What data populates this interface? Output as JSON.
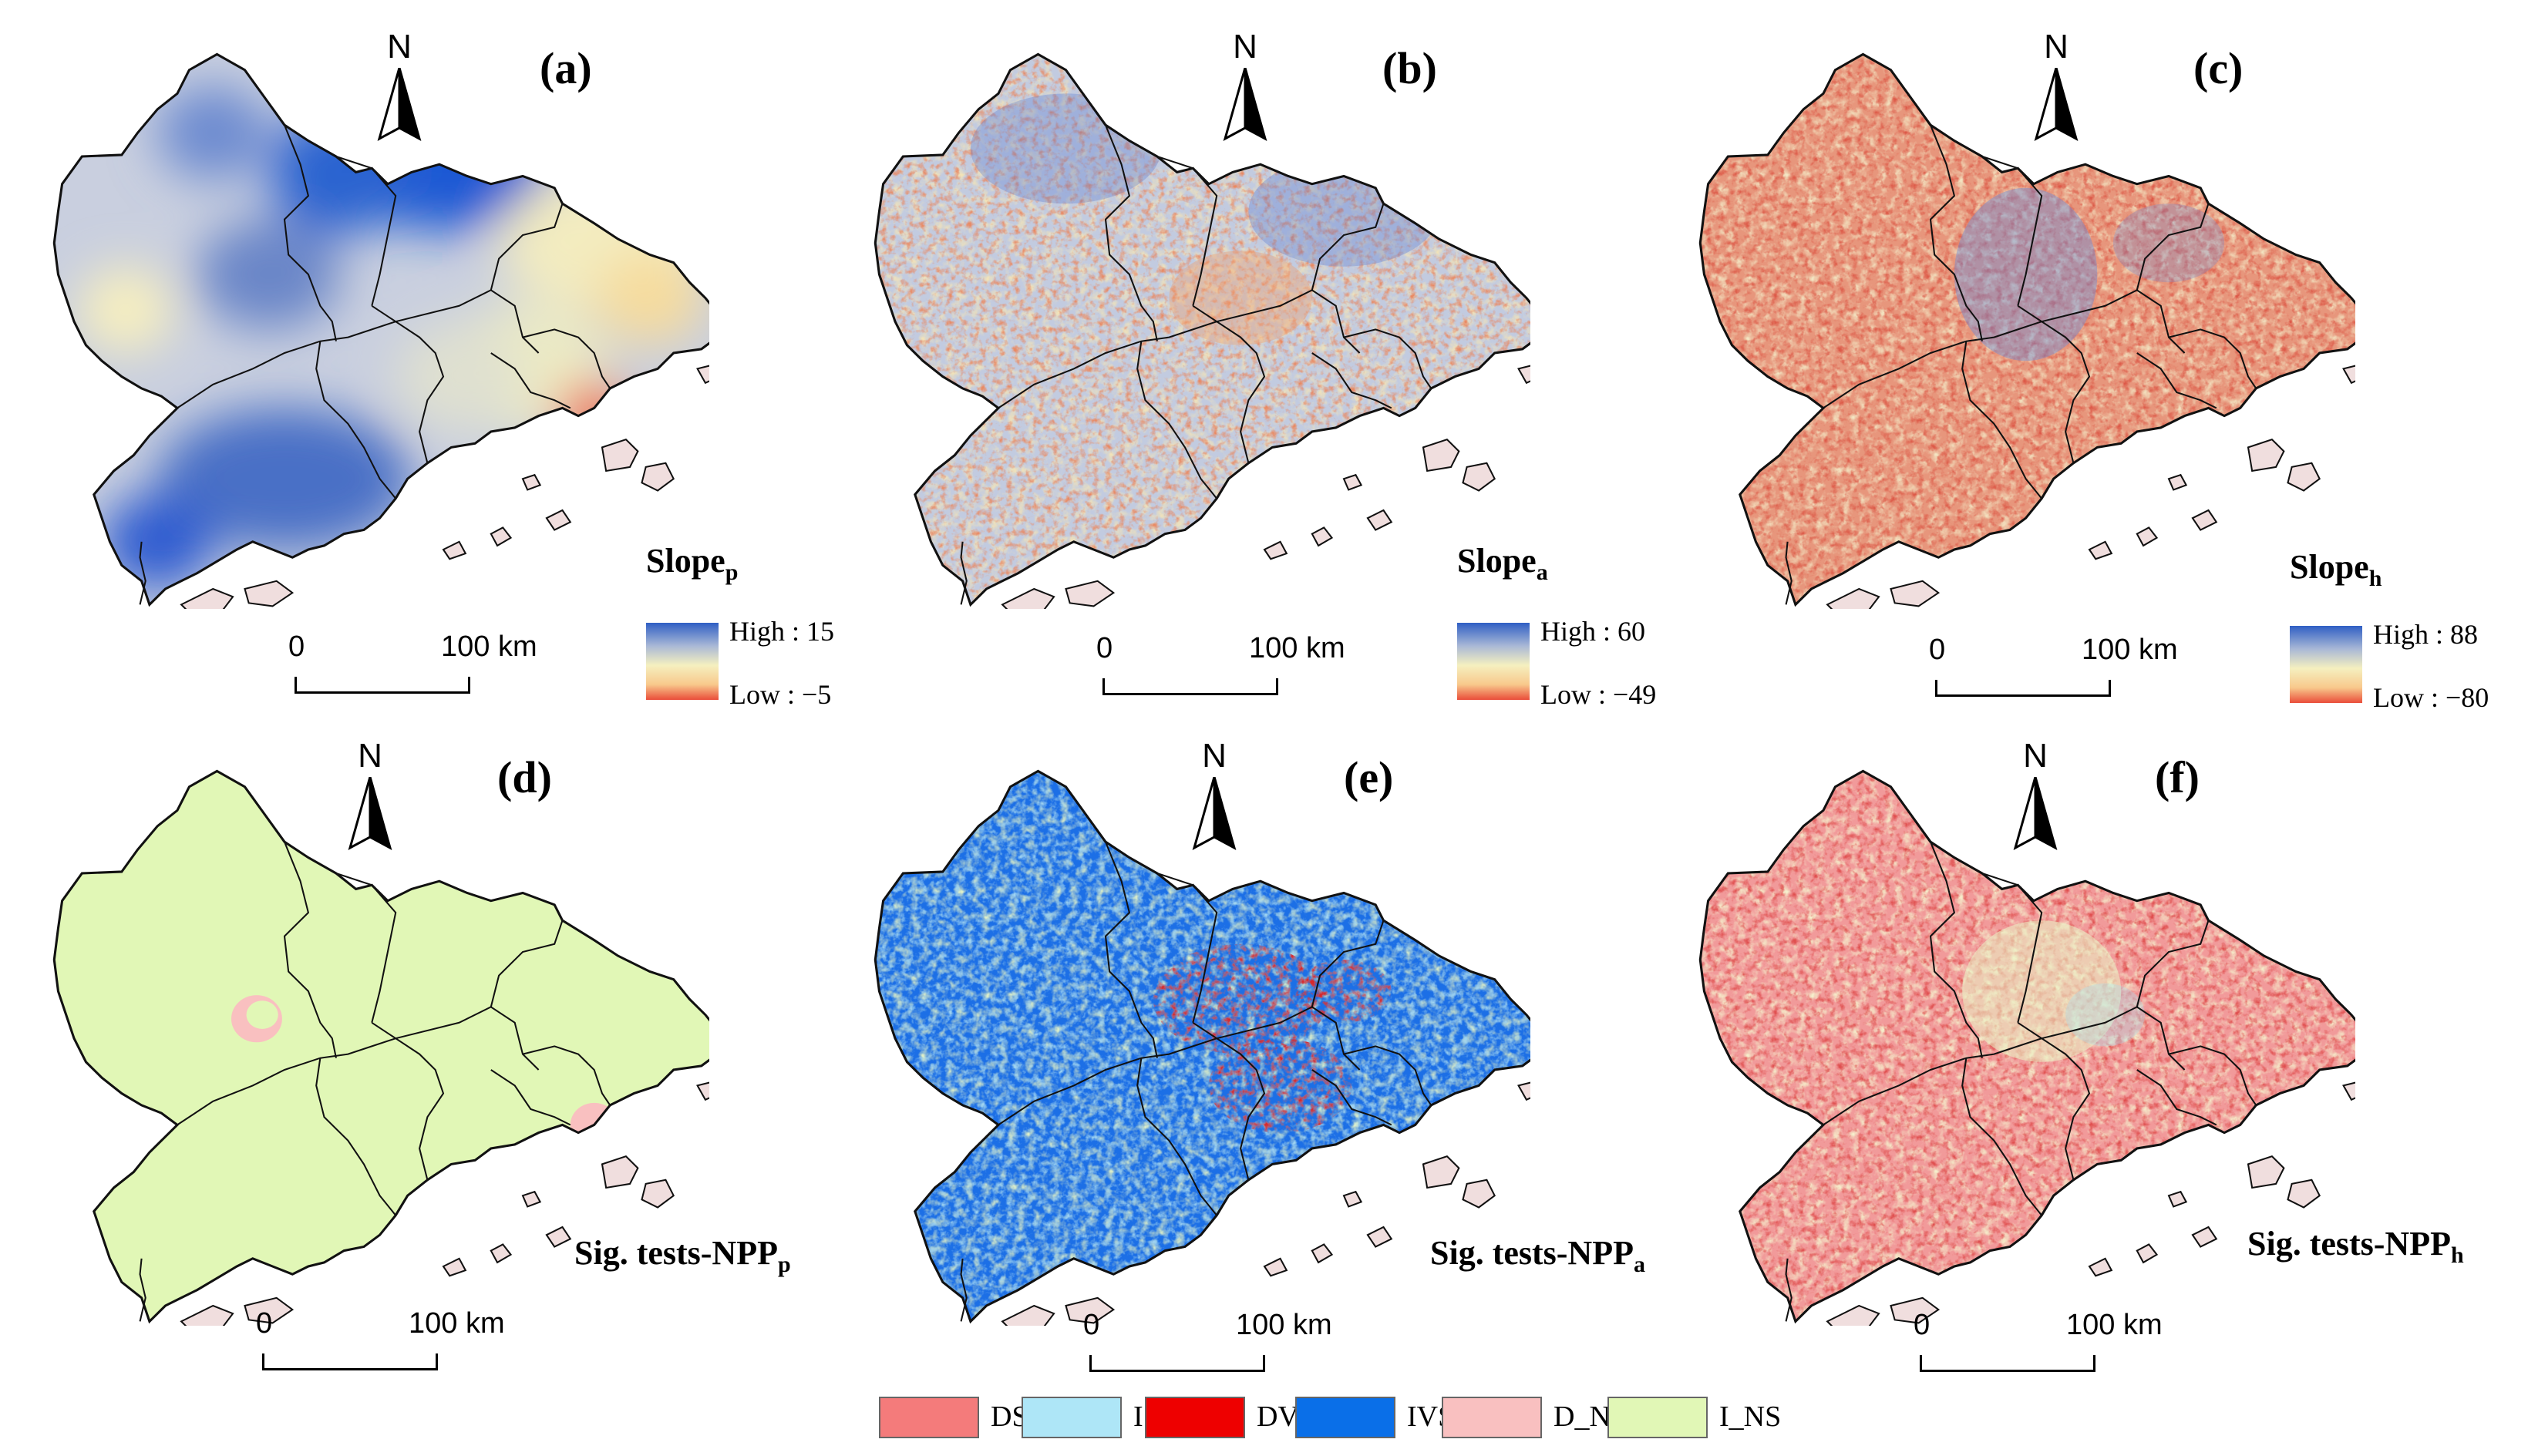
{
  "north_letter": "N",
  "scale": {
    "zero": "0",
    "distance": "100 km"
  },
  "panels": [
    {
      "label": "(a)",
      "title_main": "Slope",
      "title_sub": "p",
      "high": "High : 15",
      "low": "Low : −5",
      "style": "smooth",
      "ramp": [
        "#2f5fc4",
        "#a9b8d6",
        "#f5f0c0",
        "#f8c98c",
        "#ea4d3a"
      ]
    },
    {
      "label": "(b)",
      "title_main": "Slope",
      "title_sub": "a",
      "high": "High : 60",
      "low": "Low : −49",
      "style": "noise_mixed",
      "ramp": [
        "#2f5fc4",
        "#a9b8d6",
        "#f5f0c0",
        "#f8c98c",
        "#ea4d3a"
      ]
    },
    {
      "label": "(c)",
      "title_main": "Slope",
      "title_sub": "h",
      "high": "High : 88",
      "low": "Low : −80",
      "style": "noise_red",
      "ramp": [
        "#2f5fc4",
        "#a9b8d6",
        "#f5f0c0",
        "#f8c98c",
        "#ea4d3a"
      ]
    },
    {
      "label": "(d)",
      "title_main": "Sig. tests-NPP",
      "title_sub": "p",
      "style": "flat_green"
    },
    {
      "label": "(e)",
      "title_main": "Sig. tests-NPP",
      "title_sub": "a",
      "style": "noise_blue"
    },
    {
      "label": "(f)",
      "title_main": "Sig. tests-NPP",
      "title_sub": "h",
      "style": "noise_pink"
    }
  ],
  "legend": [
    {
      "label": "DS",
      "color": "#f47b7b"
    },
    {
      "label": "IS",
      "color": "#aee6f7"
    },
    {
      "label": "DVS",
      "color": "#ee0000"
    },
    {
      "label": "IVS",
      "color": "#0a6fe8"
    },
    {
      "label": "D_NS",
      "color": "#f9c0c0"
    },
    {
      "label": "I_NS",
      "color": "#e1f7b6"
    }
  ]
}
